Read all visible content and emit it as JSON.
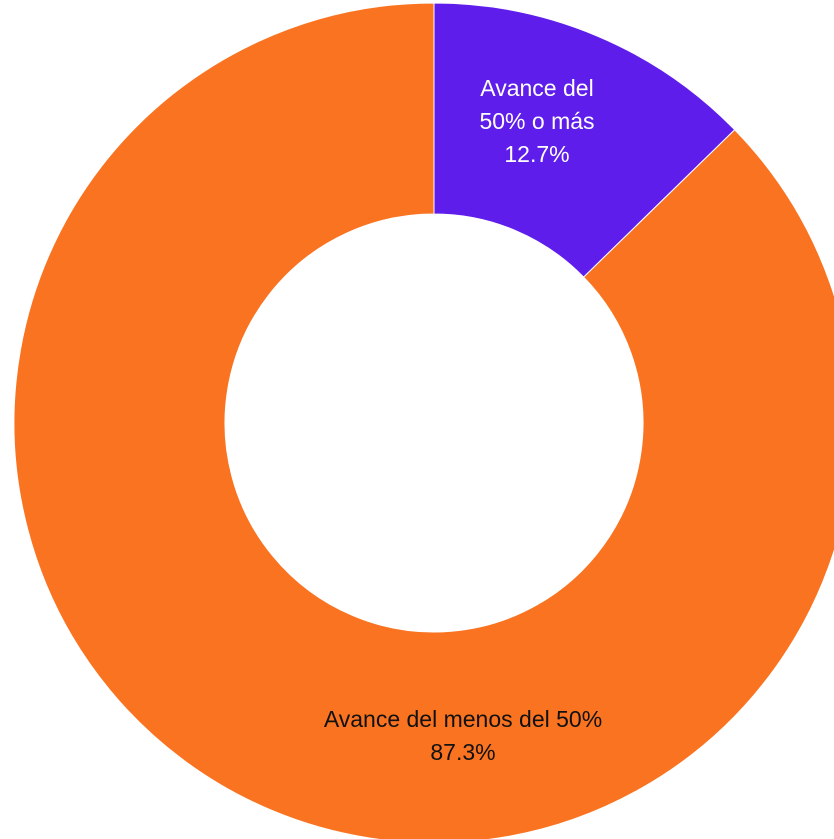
{
  "chart_data": {
    "type": "pie",
    "donut": true,
    "slices": [
      {
        "label_lines": [
          "Avance del",
          "50% o más"
        ],
        "value": 12.7,
        "value_label": "12.7%",
        "color": "#5f1deb",
        "label_color": "#ffffff"
      },
      {
        "label_lines": [
          "Avance del menos del 50%"
        ],
        "value": 87.3,
        "value_label": "87.3%",
        "color": "#f97321",
        "label_color": "#111111"
      }
    ],
    "start_angle_deg": 0,
    "direction": "clockwise",
    "legend": "none"
  }
}
